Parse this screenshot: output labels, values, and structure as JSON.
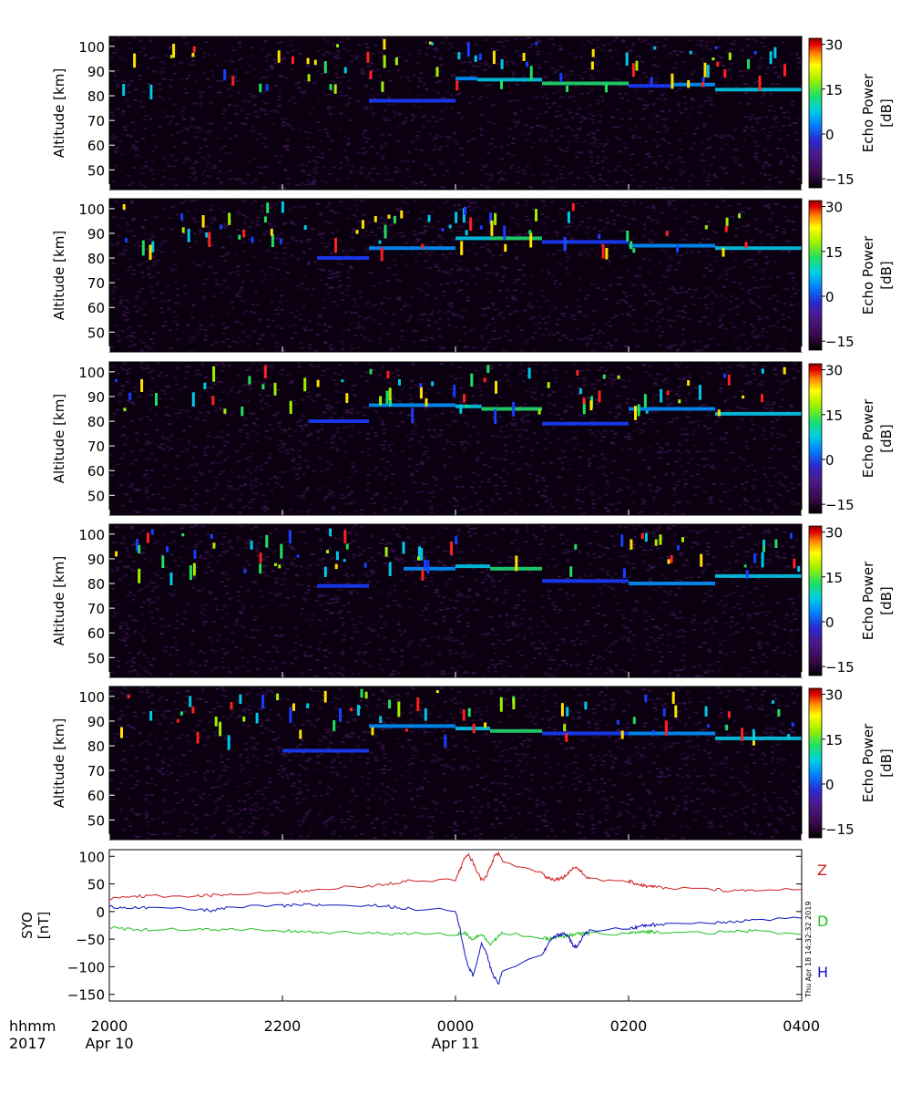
{
  "chart_data": [
    {
      "type": "heatmap",
      "panel": 1,
      "ylabel": "Altitude [km]",
      "yticks": [
        50,
        60,
        70,
        80,
        90,
        100
      ],
      "ylim": [
        42,
        104
      ],
      "colorbar": {
        "label": "Echo Power [dB]",
        "ticks": [
          -15,
          0,
          15,
          30
        ],
        "range": [
          -18,
          32
        ]
      },
      "echo_layers": [
        {
          "start": 2300,
          "end": 2400,
          "altitude": 78
        },
        {
          "start": 2400,
          "end": 2425,
          "altitude": 87
        },
        {
          "start": 2425,
          "end": 2500,
          "altitude": 86.5
        },
        {
          "start": 2500,
          "end": 2600,
          "altitude": 85
        },
        {
          "start": 2600,
          "end": 2650,
          "altitude": 84
        },
        {
          "start": 2650,
          "end": 2700,
          "altitude": 84.5
        },
        {
          "start": 2700,
          "end": 2800,
          "altitude": 82.5
        }
      ]
    },
    {
      "type": "heatmap",
      "panel": 2,
      "ylabel": "Altitude [km]",
      "yticks": [
        50,
        60,
        70,
        80,
        90,
        100
      ],
      "ylim": [
        42,
        104
      ],
      "colorbar": {
        "label": "Echo Power [dB]",
        "ticks": [
          -15,
          0,
          15,
          30
        ],
        "range": [
          -18,
          32
        ]
      },
      "echo_layers": [
        {
          "start": 2240,
          "end": 2300,
          "altitude": 80
        },
        {
          "start": 2300,
          "end": 2400,
          "altitude": 84
        },
        {
          "start": 2400,
          "end": 2440,
          "altitude": 88
        },
        {
          "start": 2440,
          "end": 2500,
          "altitude": 88
        },
        {
          "start": 2500,
          "end": 2600,
          "altitude": 86.5
        },
        {
          "start": 2600,
          "end": 2700,
          "altitude": 85
        },
        {
          "start": 2700,
          "end": 2800,
          "altitude": 84
        }
      ]
    },
    {
      "type": "heatmap",
      "panel": 3,
      "ylabel": "Altitude [km]",
      "yticks": [
        50,
        60,
        70,
        80,
        90,
        100
      ],
      "ylim": [
        42,
        104
      ],
      "colorbar": {
        "label": "Echo Power [dB]",
        "ticks": [
          -15,
          0,
          15,
          30
        ],
        "range": [
          -18,
          32
        ]
      },
      "echo_layers": [
        {
          "start": 2230,
          "end": 2300,
          "altitude": 80
        },
        {
          "start": 2300,
          "end": 2400,
          "altitude": 86.5
        },
        {
          "start": 2400,
          "end": 2430,
          "altitude": 86
        },
        {
          "start": 2430,
          "end": 2500,
          "altitude": 85
        },
        {
          "start": 2500,
          "end": 2600,
          "altitude": 79
        },
        {
          "start": 2600,
          "end": 2700,
          "altitude": 85
        },
        {
          "start": 2700,
          "end": 2800,
          "altitude": 83
        }
      ]
    },
    {
      "type": "heatmap",
      "panel": 4,
      "ylabel": "Altitude [km]",
      "yticks": [
        50,
        60,
        70,
        80,
        90,
        100
      ],
      "ylim": [
        42,
        104
      ],
      "colorbar": {
        "label": "Echo Power [dB]",
        "ticks": [
          -15,
          0,
          15,
          30
        ],
        "range": [
          -18,
          32
        ]
      },
      "echo_layers": [
        {
          "start": 2240,
          "end": 2300,
          "altitude": 79
        },
        {
          "start": 2340,
          "end": 2400,
          "altitude": 86
        },
        {
          "start": 2400,
          "end": 2440,
          "altitude": 87
        },
        {
          "start": 2440,
          "end": 2500,
          "altitude": 86
        },
        {
          "start": 2500,
          "end": 2600,
          "altitude": 81
        },
        {
          "start": 2600,
          "end": 2700,
          "altitude": 80
        },
        {
          "start": 2700,
          "end": 2800,
          "altitude": 83
        }
      ]
    },
    {
      "type": "heatmap",
      "panel": 5,
      "ylabel": "Altitude [km]",
      "yticks": [
        50,
        60,
        70,
        80,
        90,
        100
      ],
      "ylim": [
        42,
        104
      ],
      "colorbar": {
        "label": "Echo Power [dB]",
        "ticks": [
          -15,
          0,
          15,
          30
        ],
        "range": [
          -18,
          32
        ]
      },
      "echo_layers": [
        {
          "start": 2200,
          "end": 2300,
          "altitude": 78
        },
        {
          "start": 2300,
          "end": 2400,
          "altitude": 88
        },
        {
          "start": 2400,
          "end": 2440,
          "altitude": 87
        },
        {
          "start": 2440,
          "end": 2500,
          "altitude": 86
        },
        {
          "start": 2500,
          "end": 2600,
          "altitude": 85
        },
        {
          "start": 2600,
          "end": 2700,
          "altitude": 85
        },
        {
          "start": 2700,
          "end": 2800,
          "altitude": 83
        }
      ]
    },
    {
      "type": "line",
      "panel": 6,
      "ylabel": "SYO [nT]",
      "ylabel_lines": [
        "SYO",
        "[nT]"
      ],
      "yticks": [
        100,
        50,
        0,
        -50,
        -100,
        -150
      ],
      "ylim": [
        -162,
        112
      ],
      "x": [
        2000,
        2015,
        2030,
        2045,
        2100,
        2115,
        2130,
        2145,
        2200,
        2215,
        2230,
        2245,
        2300,
        2315,
        2330,
        2345,
        2400,
        2405,
        2410,
        2415,
        2420,
        2425,
        2430,
        2435,
        2440,
        2445,
        2450,
        2455,
        2500,
        2505,
        2510,
        2515,
        2520,
        2525,
        2530,
        2535,
        2540,
        2545,
        2550,
        2555,
        2600,
        2605,
        2610,
        2615,
        2620,
        2625,
        2630,
        2645,
        2700,
        2715,
        2730,
        2745,
        2800
      ],
      "series": [
        {
          "name": "Z",
          "color": "#d02020",
          "values": [
            22,
            25,
            27,
            28,
            28,
            29,
            30,
            31,
            33,
            36,
            38,
            42,
            45,
            48,
            52,
            55,
            58,
            75,
            95,
            102,
            90,
            72,
            58,
            62,
            80,
            100,
            105,
            90,
            70,
            62,
            60,
            58,
            60,
            62,
            70,
            78,
            80,
            72,
            65,
            58,
            55,
            52,
            50,
            48,
            46,
            45,
            45,
            42,
            40,
            38,
            38,
            40,
            40
          ]
        },
        {
          "name": "D",
          "color": "#20c020",
          "values": [
            -30,
            -31,
            -32,
            -33,
            -31,
            -32,
            -34,
            -33,
            -35,
            -36,
            -37,
            -38,
            -39,
            -40,
            -40,
            -40,
            -42,
            -40,
            -38,
            -45,
            -50,
            -45,
            -40,
            -50,
            -58,
            -52,
            -45,
            -38,
            -48,
            -50,
            -49,
            -47,
            -46,
            -45,
            -43,
            -42,
            -40,
            -41,
            -40,
            -40,
            -40,
            -38,
            -38,
            -37,
            -37,
            -36,
            -37,
            -37,
            -38,
            -37,
            -35,
            -35,
            -42
          ]
        },
        {
          "name": "H",
          "color": "#1010c0",
          "values": [
            8,
            8,
            7,
            6,
            4,
            2,
            5,
            8,
            10,
            11,
            12,
            12,
            11,
            10,
            8,
            5,
            2,
            -30,
            -70,
            -100,
            -115,
            -90,
            -60,
            -70,
            -100,
            -120,
            -130,
            -105,
            -80,
            -65,
            -50,
            -45,
            -42,
            -40,
            -43,
            -60,
            -65,
            -50,
            -40,
            -35,
            -30,
            -30,
            -28,
            -26,
            -25,
            -24,
            -24,
            -22,
            -20,
            -18,
            -17,
            -15,
            -12
          ]
        }
      ],
      "series_labels": [
        "Z",
        "D",
        "H"
      ],
      "timestamp": "Thu Apr 18 14:32:32 2019"
    }
  ],
  "x_axis": {
    "range": [
      2000,
      2800
    ],
    "row_labels": [
      "hhmm",
      "2017"
    ],
    "ticks": [
      {
        "value": 2000,
        "label": "2000",
        "date": "Apr 10"
      },
      {
        "value": 2200,
        "label": "2200",
        "date": ""
      },
      {
        "value": 2400,
        "label": "0000",
        "date": "Apr 11"
      },
      {
        "value": 2600,
        "label": "0200",
        "date": ""
      },
      {
        "value": 2800,
        "label": "0400",
        "date": ""
      }
    ]
  },
  "colors": {
    "colormap": [
      "#000000",
      "#3a0a4a",
      "#4a1a8a",
      "#2a2ad0",
      "#0080ff",
      "#00d0e0",
      "#20e060",
      "#a0f000",
      "#ffff00",
      "#ff8000",
      "#e00000",
      "#900000"
    ],
    "noise": "#3c1450",
    "background": "#0a0010"
  }
}
